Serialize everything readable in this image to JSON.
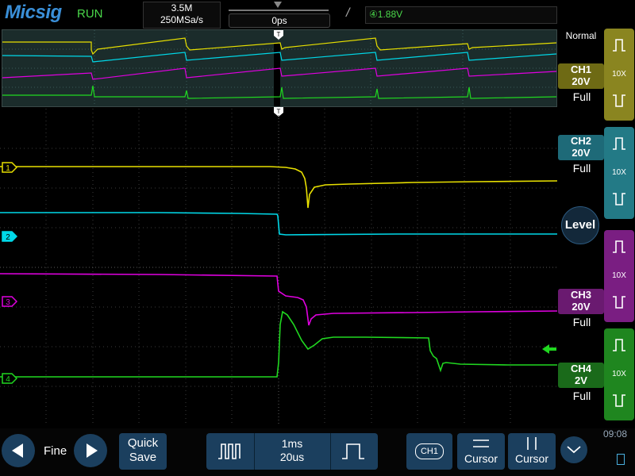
{
  "top_bar": {
    "logo": "Micsig",
    "run_state": "RUN",
    "memory_depth": "3.5M",
    "sample_rate": "250MSa/s",
    "time_position": "0ps",
    "trigger_edge_symbol": "/",
    "trigger_level": "1.88V",
    "trigger_source_icon": "ch4-trigger-icon"
  },
  "right_panel": {
    "trigger_mode": "Normal",
    "level_button": "Level",
    "channels": [
      {
        "name": "CH1",
        "scale": "20V",
        "coupling": "Full",
        "probe": "10X",
        "color": "#e8e000",
        "label_bg": "#6e6a14",
        "probe_bg": "#8a8520"
      },
      {
        "name": "CH2",
        "scale": "20V",
        "coupling": "Full",
        "probe": "10X",
        "color": "#00d8e8",
        "label_bg": "#1e6a78",
        "probe_bg": "#237a86"
      },
      {
        "name": "CH3",
        "scale": "20V",
        "coupling": "Full",
        "probe": "10X",
        "color": "#e000e0",
        "label_bg": "#6a1a70",
        "probe_bg": "#7a1e82"
      },
      {
        "name": "CH4",
        "scale": "2V",
        "coupling": "Full",
        "probe": "10X",
        "color": "#20d820",
        "label_bg": "#1a6a1a",
        "probe_bg": "#1f861f"
      }
    ]
  },
  "markers": {
    "ch1": "1",
    "ch2": "2",
    "ch3": "3",
    "ch4": "4",
    "trigger": "T"
  },
  "bottom_bar": {
    "fine_label": "Fine",
    "quick_save_line1": "Quick",
    "quick_save_line2": "Save",
    "timebase_main": "1ms",
    "timebase_zoom": "20us",
    "active_channel": "CH1",
    "cursor_horizontal": "Cursor",
    "cursor_vertical": "Cursor",
    "clock": "09:08"
  }
}
